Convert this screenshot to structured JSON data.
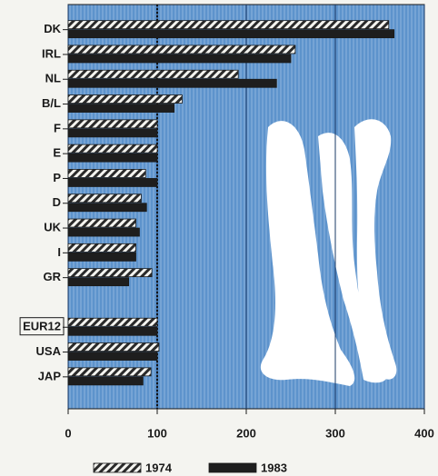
{
  "chart_data": {
    "type": "bar",
    "orientation": "horizontal",
    "categories": [
      "DK",
      "IRL",
      "NL",
      "B/L",
      "F",
      "E",
      "P",
      "D",
      "UK",
      "I",
      "GR",
      null,
      "EUR12",
      "USA",
      "JAP"
    ],
    "series": [
      {
        "name": "1974",
        "color": "#2a2a2a",
        "hatch": true,
        "values": [
          360,
          255,
          191,
          128,
          100,
          100,
          87,
          82,
          76,
          76,
          94,
          null,
          100,
          102,
          93
        ]
      },
      {
        "name": "1983",
        "color": "#1e1e1e",
        "hatch": false,
        "values": [
          366,
          250,
          234,
          119,
          100,
          100,
          100,
          88,
          80,
          76,
          68,
          null,
          100,
          100,
          84
        ]
      }
    ],
    "boxed_category": "EUR12",
    "reference_line": 100,
    "xlim": [
      0,
      400
    ],
    "xticks": [
      0,
      100,
      200,
      300,
      400
    ],
    "grid": true,
    "legend": "bottom"
  }
}
